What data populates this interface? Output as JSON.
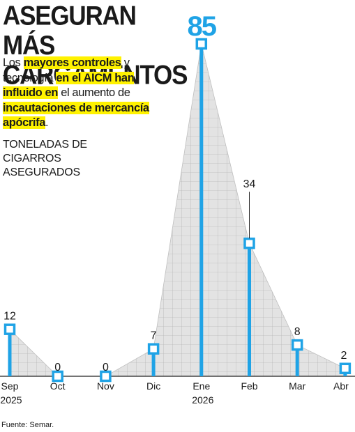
{
  "headline": "ASEGURAN MÁS CARGAMENTOS",
  "dek": {
    "p1": "Los ",
    "h1": "mayores controles",
    "p2": " y tecnología ",
    "h2": "en el AICM han influido en",
    "p3": " el aumento de ",
    "h3": "incautaciones de mercancía apócrifa",
    "p4": "."
  },
  "unit_label": "TONELADAS DE CIGARROS ASEGURADOS",
  "source": "Fuente: Semar.",
  "colors": {
    "accent": "#1fa3e6",
    "highlight": "#fff200",
    "area_fill": "#e3e3e3",
    "grid": "#a8a8a8",
    "text": "#1a1a1a"
  },
  "chart_data": {
    "type": "bar",
    "categories": [
      "Sep",
      "Oct",
      "Nov",
      "Dic",
      "Ene",
      "Feb",
      "Mar",
      "Abr"
    ],
    "category_sublabels": [
      "2025",
      "",
      "",
      "",
      "2026",
      "",
      "",
      ""
    ],
    "values": [
      12,
      0,
      0,
      7,
      85,
      34,
      8,
      2
    ],
    "data_labels": [
      "12",
      "0",
      "0",
      "7",
      "85",
      "34",
      "8",
      "2"
    ],
    "ylim": [
      0,
      85
    ],
    "grid": true
  }
}
